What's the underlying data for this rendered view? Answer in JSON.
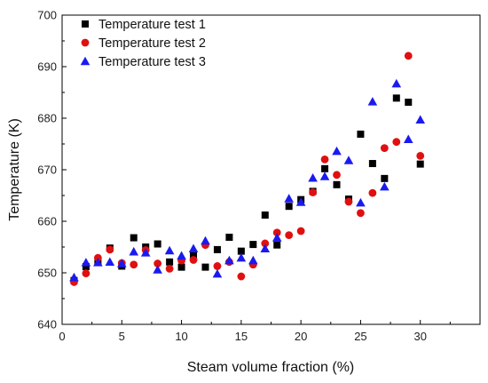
{
  "chart_data": {
    "type": "scatter",
    "title": "",
    "xlabel": "Steam volume fraction (%)",
    "ylabel": "Temperature (K)",
    "xlim": [
      0,
      35
    ],
    "ylim": [
      640,
      700
    ],
    "xticks": [
      0,
      5,
      10,
      15,
      20,
      25,
      30
    ],
    "yticks": [
      640,
      650,
      660,
      670,
      680,
      690,
      700
    ],
    "grid": false,
    "legend_position": "top-left",
    "series": [
      {
        "name": "Temperature test 1",
        "marker": "square",
        "color": "#000000",
        "points": [
          [
            1,
            648.5
          ],
          [
            2,
            651.2
          ],
          [
            3,
            652.0
          ],
          [
            4,
            654.8
          ],
          [
            5,
            651.3
          ],
          [
            6,
            656.8
          ],
          [
            7,
            655.0
          ],
          [
            8,
            655.6
          ],
          [
            9,
            652.1
          ],
          [
            10,
            651.1
          ],
          [
            11,
            653.5
          ],
          [
            12,
            651.1
          ],
          [
            13,
            654.5
          ],
          [
            14,
            656.9
          ],
          [
            15,
            654.2
          ],
          [
            16,
            655.5
          ],
          [
            17,
            661.2
          ],
          [
            18,
            655.4
          ],
          [
            19,
            662.9
          ],
          [
            20,
            664.2
          ],
          [
            21,
            665.8
          ],
          [
            22,
            670.2
          ],
          [
            23,
            667.1
          ],
          [
            24,
            664.3
          ],
          [
            25,
            676.9
          ],
          [
            26,
            671.2
          ],
          [
            27,
            668.3
          ],
          [
            28,
            683.9
          ],
          [
            29,
            683.1
          ],
          [
            30,
            671.1
          ]
        ]
      },
      {
        "name": "Temperature test 2",
        "marker": "circle",
        "color": "#e01010",
        "points": [
          [
            1,
            648.2
          ],
          [
            2,
            649.9
          ],
          [
            3,
            652.9
          ],
          [
            4,
            654.5
          ],
          [
            5,
            651.9
          ],
          [
            6,
            651.6
          ],
          [
            7,
            654.4
          ],
          [
            8,
            651.8
          ],
          [
            9,
            650.8
          ],
          [
            10,
            652.4
          ],
          [
            11,
            652.5
          ],
          [
            12,
            655.4
          ],
          [
            13,
            651.3
          ],
          [
            14,
            652.1
          ],
          [
            15,
            649.3
          ],
          [
            16,
            651.6
          ],
          [
            17,
            655.7
          ],
          [
            18,
            657.8
          ],
          [
            19,
            657.3
          ],
          [
            20,
            658.1
          ],
          [
            21,
            665.6
          ],
          [
            22,
            672.0
          ],
          [
            23,
            669.0
          ],
          [
            24,
            663.8
          ],
          [
            25,
            661.6
          ],
          [
            26,
            665.5
          ],
          [
            27,
            674.2
          ],
          [
            28,
            675.4
          ],
          [
            29,
            692.1
          ],
          [
            30,
            672.7
          ]
        ]
      },
      {
        "name": "Temperature test 3",
        "marker": "triangle",
        "color": "#1a1af0",
        "points": [
          [
            1,
            649.1
          ],
          [
            2,
            652.0
          ],
          [
            3,
            652.0
          ],
          [
            4,
            652.1
          ],
          [
            5,
            651.8
          ],
          [
            6,
            654.1
          ],
          [
            7,
            653.9
          ],
          [
            8,
            650.6
          ],
          [
            9,
            654.3
          ],
          [
            10,
            653.3
          ],
          [
            11,
            654.7
          ],
          [
            12,
            656.2
          ],
          [
            13,
            649.8
          ],
          [
            14,
            652.4
          ],
          [
            15,
            652.9
          ],
          [
            16,
            652.4
          ],
          [
            17,
            654.7
          ],
          [
            18,
            656.8
          ],
          [
            19,
            664.4
          ],
          [
            20,
            663.7
          ],
          [
            21,
            668.4
          ],
          [
            22,
            668.7
          ],
          [
            23,
            673.6
          ],
          [
            24,
            671.8
          ],
          [
            25,
            663.6
          ],
          [
            26,
            683.2
          ],
          [
            27,
            666.7
          ],
          [
            28,
            686.7
          ],
          [
            29,
            675.9
          ],
          [
            30,
            679.7
          ]
        ]
      }
    ]
  }
}
